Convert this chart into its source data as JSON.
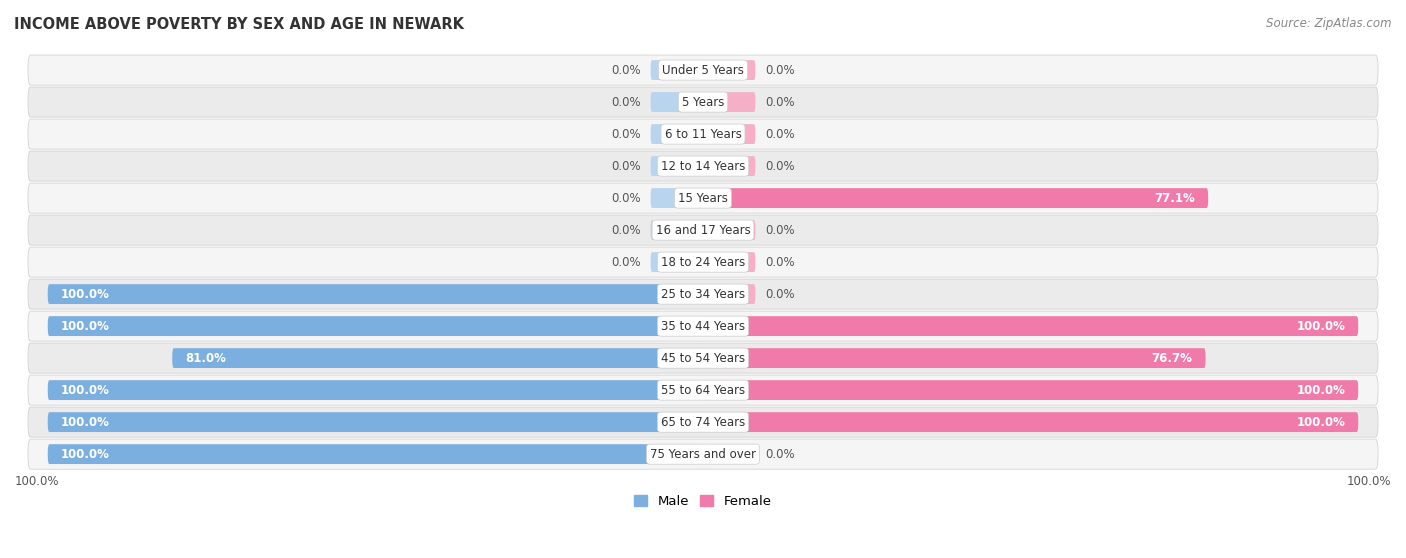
{
  "title": "INCOME ABOVE POVERTY BY SEX AND AGE IN NEWARK",
  "source": "Source: ZipAtlas.com",
  "categories": [
    "Under 5 Years",
    "5 Years",
    "6 to 11 Years",
    "12 to 14 Years",
    "15 Years",
    "16 and 17 Years",
    "18 to 24 Years",
    "25 to 34 Years",
    "35 to 44 Years",
    "45 to 54 Years",
    "55 to 64 Years",
    "65 to 74 Years",
    "75 Years and over"
  ],
  "male": [
    0.0,
    0.0,
    0.0,
    0.0,
    0.0,
    0.0,
    0.0,
    100.0,
    100.0,
    81.0,
    100.0,
    100.0,
    100.0
  ],
  "female": [
    0.0,
    0.0,
    0.0,
    0.0,
    77.1,
    0.0,
    0.0,
    0.0,
    100.0,
    76.7,
    100.0,
    100.0,
    0.0
  ],
  "male_color": "#7aafe0",
  "female_color": "#f07aaa",
  "male_color_light": "#b8d4ee",
  "female_color_light": "#f5b0c8",
  "row_bg_even": "#f0f0f0",
  "row_bg_odd": "#e0e0e0",
  "row_outline": "#d8d8d8",
  "max_val": 100.0,
  "small_bar_val": 8.0,
  "label_fontsize": 8.5,
  "title_fontsize": 10.5,
  "source_fontsize": 8.5,
  "axis_label_fontsize": 8.5,
  "cat_label_fontsize": 8.5,
  "legend_fontsize": 9.5,
  "bar_height": 0.62
}
